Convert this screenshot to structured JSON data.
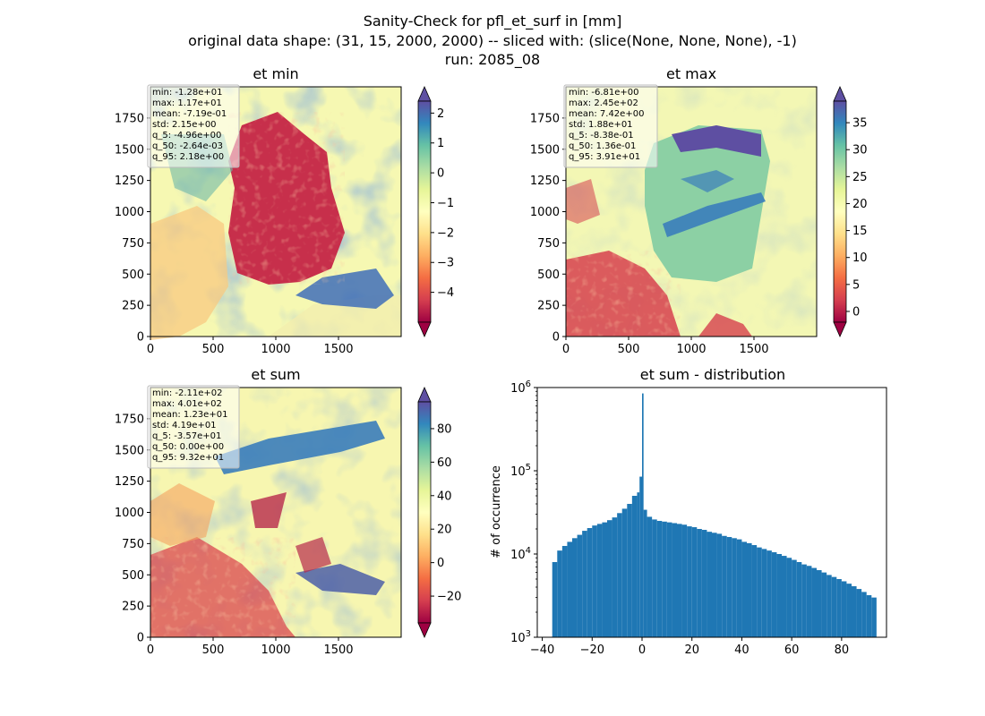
{
  "title": {
    "line1": "Sanity-Check for pfl_et_surf in [mm]",
    "line2": "original data shape: (31, 15, 2000, 2000) -- sliced with: (slice(None, None, None), -1)",
    "line3": "run: 2085_08"
  },
  "chart_data": [
    {
      "type": "heatmap",
      "title": "et min",
      "xticks": [
        0,
        500,
        1000,
        1500
      ],
      "yticks": [
        0,
        250,
        500,
        750,
        1000,
        1250,
        1500,
        1750
      ],
      "xlim": [
        0,
        2000
      ],
      "ylim": [
        0,
        2000
      ],
      "colormap": "Spectral",
      "colorbar": {
        "range": [
          -5,
          2.4
        ],
        "ticks": [
          2,
          1,
          0,
          -1,
          -2,
          -3,
          -4
        ],
        "tick_labels": [
          "2",
          "1",
          "0",
          "−1",
          "−2",
          "−3",
          "−4"
        ]
      },
      "stats": [
        "min: -1.28e+01",
        "max: 1.17e+01",
        "mean: -7.19e-01",
        "std: 2.15e+00",
        "q_5: -4.96e+00",
        "q_50: -2.64e-03",
        "q_95: 2.18e+00"
      ]
    },
    {
      "type": "heatmap",
      "title": "et max",
      "xticks": [
        0,
        500,
        1000,
        1500
      ],
      "yticks": [
        0,
        250,
        500,
        750,
        1000,
        1250,
        1500,
        1750
      ],
      "xlim": [
        0,
        2000
      ],
      "ylim": [
        0,
        2000
      ],
      "colormap": "Spectral",
      "colorbar": {
        "range": [
          -2,
          39
        ],
        "ticks": [
          35,
          30,
          25,
          20,
          15,
          10,
          5,
          0
        ],
        "tick_labels": [
          "35",
          "30",
          "25",
          "20",
          "15",
          "10",
          "5",
          "0"
        ]
      },
      "stats": [
        "min: -6.81e+00",
        "max: 2.45e+02",
        "mean: 7.42e+00",
        "std: 1.88e+01",
        "q_5: -8.38e-01",
        "q_50: 1.36e-01",
        "q_95: 3.91e+01"
      ]
    },
    {
      "type": "heatmap",
      "title": "et sum",
      "xticks": [
        0,
        500,
        1000,
        1500
      ],
      "yticks": [
        0,
        250,
        500,
        750,
        1000,
        1250,
        1500,
        1750
      ],
      "xlim": [
        0,
        2000
      ],
      "ylim": [
        0,
        2000
      ],
      "colormap": "Spectral",
      "colorbar": {
        "range": [
          -36,
          96
        ],
        "ticks": [
          80,
          60,
          40,
          20,
          0,
          -20
        ],
        "tick_labels": [
          "80",
          "60",
          "40",
          "20",
          "0",
          "−20"
        ]
      },
      "stats": [
        "min: -2.11e+02",
        "max: 4.01e+02",
        "mean: 1.23e+01",
        "std: 4.19e+01",
        "q_5: -3.57e+01",
        "q_50: 0.00e+00",
        "q_95: 9.32e+01"
      ]
    },
    {
      "type": "bar",
      "title": "et sum - distribution",
      "ylabel": "# of occurrence",
      "yscale": "log",
      "xlim": [
        -42,
        98
      ],
      "ylim": [
        1000,
        1000000
      ],
      "xticks": [
        -40,
        -20,
        0,
        20,
        40,
        60,
        80
      ],
      "xtick_labels": [
        "−40",
        "−20",
        "0",
        "20",
        "40",
        "60",
        "80"
      ],
      "ytick_labels": [
        {
          "value": 1000,
          "base": "10",
          "exp": "3"
        },
        {
          "value": 10000,
          "base": "10",
          "exp": "4"
        },
        {
          "value": 100000,
          "base": "10",
          "exp": "5"
        },
        {
          "value": 1000000,
          "base": "10",
          "exp": "6"
        }
      ],
      "bar_color": "#1f77b4",
      "x": [
        -36,
        -34,
        -32,
        -30,
        -28,
        -26,
        -24,
        -22,
        -20,
        -18,
        -16,
        -14,
        -12,
        -10,
        -8,
        -6,
        -4,
        -2,
        -1,
        0,
        0.6,
        2,
        4,
        6,
        8,
        10,
        12,
        14,
        16,
        18,
        20,
        22,
        24,
        26,
        28,
        30,
        32,
        34,
        36,
        38,
        40,
        42,
        44,
        46,
        48,
        50,
        52,
        54,
        56,
        58,
        60,
        62,
        64,
        66,
        68,
        70,
        72,
        74,
        76,
        78,
        80,
        82,
        84,
        86,
        88,
        90,
        92
      ],
      "values": [
        8000,
        11000,
        12500,
        14000,
        15500,
        17000,
        19000,
        20500,
        22000,
        23000,
        24000,
        25500,
        27500,
        31000,
        35000,
        40000,
        50000,
        55000,
        85000,
        850000,
        34000,
        28000,
        26000,
        25000,
        24500,
        24000,
        23500,
        23000,
        22500,
        21500,
        21000,
        20000,
        19500,
        18500,
        18000,
        17500,
        16500,
        16000,
        15500,
        15000,
        14000,
        13500,
        12800,
        12000,
        11500,
        11000,
        10500,
        10000,
        9500,
        9000,
        8500,
        8000,
        7500,
        7200,
        6800,
        6400,
        6000,
        5600,
        5300,
        5000,
        4700,
        4400,
        4100,
        3800,
        3500,
        3200,
        3000
      ]
    }
  ]
}
